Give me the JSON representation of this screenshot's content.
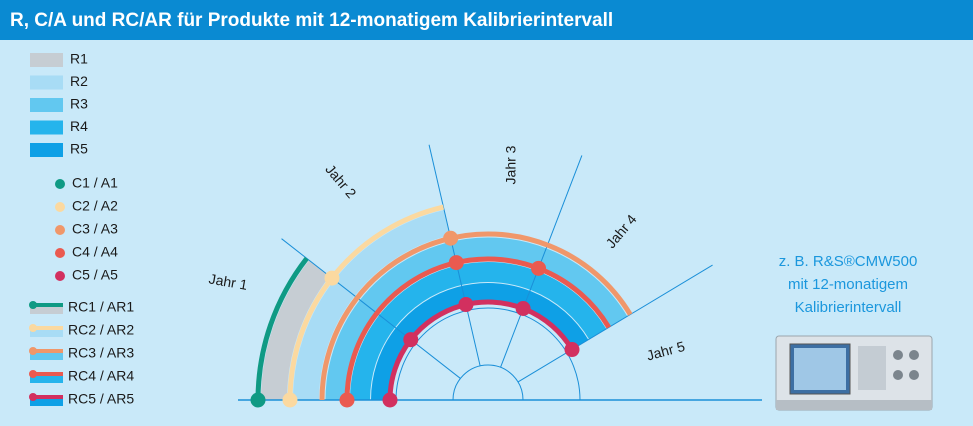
{
  "header": {
    "title": "R, C/A und RC/AR für Produkte mit 12-monatigem Kalibrierintervall"
  },
  "legend": {
    "ranges": [
      "R1",
      "R2",
      "R3",
      "R4",
      "R5"
    ],
    "checks": [
      "C1 / A1",
      "C2 / A2",
      "C3 / A3",
      "C4 / A4",
      "C5 / A5"
    ],
    "recals": [
      "RC1 / AR1",
      "RC2 / AR2",
      "RC3 / AR3",
      "RC4 / AR4",
      "RC5 / AR5"
    ]
  },
  "years": [
    "Jahr 1",
    "Jahr 2",
    "Jahr 3",
    "Jahr 4",
    "Jahr 5"
  ],
  "caption": [
    "z. B. R&S®CMW500",
    "mit 12-monatigem",
    "Kalibrierintervall"
  ]
}
